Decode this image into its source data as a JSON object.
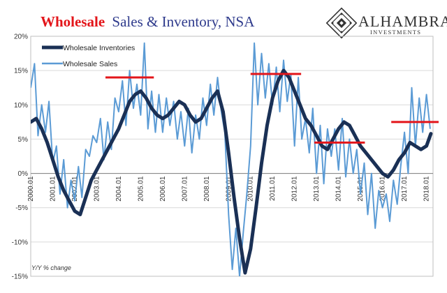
{
  "header": {
    "title_highlight": "Wholesale",
    "title_rest": "Sales & Inventory, NSA",
    "brand_name": "ALHAMBRA",
    "brand_sub": "INVESTMENTS"
  },
  "colors": {
    "title_highlight": "#e3151a",
    "title_rest": "#2e3a8c",
    "inventories": "#1a3055",
    "sales": "#5b9bd5",
    "reference": "#e3151a",
    "brand": "#333333"
  },
  "chart_data": {
    "type": "line",
    "title": "Wholesale Sales & Inventory, NSA",
    "ylabel": "Y/Y % change",
    "ylim": [
      -15,
      20
    ],
    "yticks": [
      20,
      15,
      10,
      5,
      0,
      -5,
      -10,
      -15
    ],
    "ytick_labels": [
      "20%",
      "15%",
      "10%",
      "5%",
      "0%",
      "-5%",
      "-10%",
      "-15%"
    ],
    "xlim": [
      2000.0,
      2018.3
    ],
    "xticks": [
      2000,
      2001,
      2002,
      2003,
      2004,
      2005,
      2006,
      2007,
      2008,
      2009,
      2010,
      2011,
      2012,
      2013,
      2014,
      2015,
      2016,
      2017,
      2018
    ],
    "xtick_labels": [
      "2000.01",
      "2001.01",
      "2002.01",
      "2003.01",
      "2004.01",
      "2005.01",
      "2006.01",
      "2007.01",
      "2008.01",
      "2009.01",
      "2010.01",
      "2011.01",
      "2012.01",
      "2013.01",
      "2014.01",
      "2015.01",
      "2016.01",
      "2017.01",
      "2018.01"
    ],
    "legend": [
      "Wholesale Inventories",
      "Wholesale Sales"
    ],
    "legend_position": "top-left",
    "series": [
      {
        "name": "Wholesale Inventories",
        "x": [
          2000.0,
          2000.25,
          2000.5,
          2000.75,
          2001.0,
          2001.25,
          2001.5,
          2001.75,
          2002.0,
          2002.25,
          2002.5,
          2002.75,
          2003.0,
          2003.25,
          2003.5,
          2003.75,
          2004.0,
          2004.25,
          2004.5,
          2004.75,
          2005.0,
          2005.25,
          2005.5,
          2005.75,
          2006.0,
          2006.25,
          2006.5,
          2006.75,
          2007.0,
          2007.25,
          2007.5,
          2007.75,
          2008.0,
          2008.25,
          2008.5,
          2008.75,
          2009.0,
          2009.25,
          2009.5,
          2009.75,
          2010.0,
          2010.25,
          2010.5,
          2010.75,
          2011.0,
          2011.25,
          2011.5,
          2011.75,
          2012.0,
          2012.25,
          2012.5,
          2012.75,
          2013.0,
          2013.25,
          2013.5,
          2013.75,
          2014.0,
          2014.25,
          2014.5,
          2014.75,
          2015.0,
          2015.25,
          2015.5,
          2015.75,
          2016.0,
          2016.25,
          2016.5,
          2016.75,
          2017.0,
          2017.25,
          2017.5,
          2017.75,
          2018.0,
          2018.2
        ],
        "values": [
          7.5,
          8.0,
          6.5,
          4.5,
          2.0,
          -0.5,
          -2.5,
          -4.0,
          -5.5,
          -6.0,
          -3.5,
          -1.0,
          0.5,
          2.0,
          3.5,
          5.0,
          6.5,
          8.5,
          10.5,
          11.5,
          12.0,
          11.0,
          9.5,
          8.5,
          8.0,
          8.5,
          9.5,
          10.5,
          10.0,
          8.5,
          7.5,
          8.0,
          9.5,
          11.0,
          12.0,
          9.0,
          3.0,
          -3.5,
          -9.5,
          -14.5,
          -11.0,
          -5.0,
          1.5,
          7.0,
          11.0,
          13.5,
          15.0,
          14.0,
          12.0,
          10.0,
          8.0,
          7.0,
          5.5,
          4.0,
          3.5,
          5.0,
          6.5,
          7.5,
          7.0,
          5.5,
          4.0,
          3.0,
          2.0,
          1.0,
          0.0,
          -0.5,
          0.5,
          2.0,
          3.0,
          4.5,
          4.0,
          3.5,
          4.0,
          5.8
        ]
      },
      {
        "name": "Wholesale Sales",
        "x": [
          2000.0,
          2000.17,
          2000.33,
          2000.5,
          2000.67,
          2000.83,
          2001.0,
          2001.17,
          2001.33,
          2001.5,
          2001.67,
          2001.83,
          2002.0,
          2002.17,
          2002.33,
          2002.5,
          2002.67,
          2002.83,
          2003.0,
          2003.17,
          2003.33,
          2003.5,
          2003.67,
          2003.83,
          2004.0,
          2004.17,
          2004.33,
          2004.5,
          2004.67,
          2004.83,
          2005.0,
          2005.17,
          2005.33,
          2005.5,
          2005.67,
          2005.83,
          2006.0,
          2006.17,
          2006.33,
          2006.5,
          2006.67,
          2006.83,
          2007.0,
          2007.17,
          2007.33,
          2007.5,
          2007.67,
          2007.83,
          2008.0,
          2008.17,
          2008.33,
          2008.5,
          2008.67,
          2008.83,
          2009.0,
          2009.17,
          2009.33,
          2009.5,
          2009.67,
          2009.83,
          2010.0,
          2010.17,
          2010.33,
          2010.5,
          2010.67,
          2010.83,
          2011.0,
          2011.17,
          2011.33,
          2011.5,
          2011.67,
          2011.83,
          2012.0,
          2012.17,
          2012.33,
          2012.5,
          2012.67,
          2012.83,
          2013.0,
          2013.17,
          2013.33,
          2013.5,
          2013.67,
          2013.83,
          2014.0,
          2014.17,
          2014.33,
          2014.5,
          2014.67,
          2014.83,
          2015.0,
          2015.17,
          2015.33,
          2015.5,
          2015.67,
          2015.83,
          2016.0,
          2016.17,
          2016.33,
          2016.5,
          2016.67,
          2016.83,
          2017.0,
          2017.17,
          2017.33,
          2017.5,
          2017.67,
          2017.83,
          2018.0,
          2018.17
        ],
        "values": [
          12.5,
          16.0,
          5.5,
          10.0,
          6.0,
          10.5,
          1.5,
          4.0,
          -3.0,
          2.0,
          -5.0,
          -1.0,
          -4.0,
          1.0,
          -3.5,
          3.5,
          2.5,
          5.5,
          4.5,
          8.0,
          2.0,
          7.5,
          3.5,
          11.0,
          9.0,
          13.5,
          7.0,
          15.0,
          9.5,
          13.0,
          8.5,
          19.0,
          6.5,
          12.0,
          6.0,
          11.5,
          6.0,
          11.0,
          7.0,
          10.5,
          5.0,
          9.0,
          4.0,
          9.5,
          3.0,
          8.5,
          5.0,
          11.0,
          7.0,
          13.0,
          8.5,
          14.0,
          9.0,
          6.0,
          -6.0,
          -14.0,
          -8.0,
          -15.0,
          -8.5,
          -3.0,
          4.0,
          19.0,
          10.0,
          17.5,
          11.0,
          16.0,
          10.0,
          15.5,
          9.0,
          16.5,
          10.5,
          14.5,
          4.0,
          14.0,
          5.0,
          8.0,
          3.0,
          9.5,
          0.0,
          7.0,
          -1.5,
          6.5,
          2.5,
          6.5,
          0.5,
          8.0,
          -0.5,
          5.0,
          0.0,
          3.5,
          -3.0,
          1.5,
          -6.0,
          0.0,
          -8.0,
          -2.5,
          -5.0,
          -3.0,
          -7.0,
          -1.0,
          -4.5,
          1.0,
          6.0,
          0.0,
          12.5,
          4.0,
          11.0,
          6.0,
          11.5,
          6.5
        ]
      }
    ],
    "annotations": [
      {
        "type": "reference-line",
        "x_start": 2003.4,
        "x_end": 2005.6,
        "y": 14.0
      },
      {
        "type": "reference-line",
        "x_start": 2010.0,
        "x_end": 2012.3,
        "y": 14.5
      },
      {
        "type": "reference-line",
        "x_start": 2012.9,
        "x_end": 2015.2,
        "y": 4.5
      },
      {
        "type": "reference-line",
        "x_start": 2016.4,
        "x_end": 2018.6,
        "y": 7.5
      }
    ]
  }
}
